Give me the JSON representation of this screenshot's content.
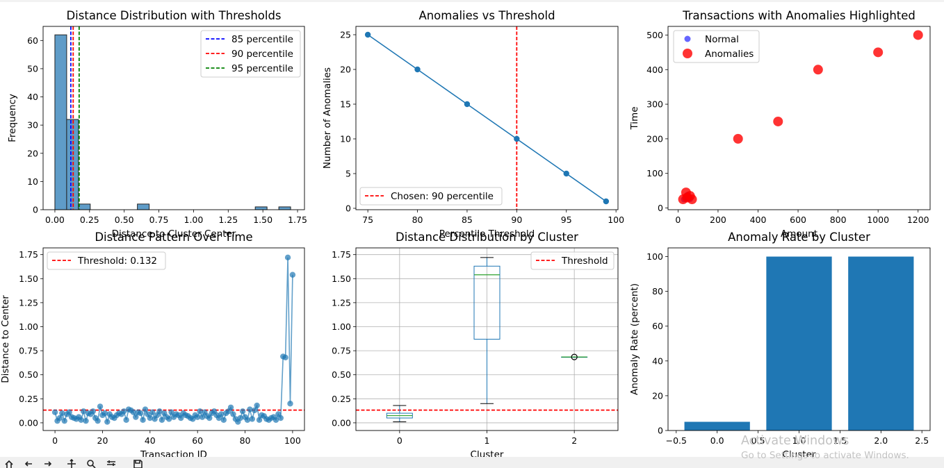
{
  "charts": {
    "hist": {
      "title": "Distance Distribution with Thresholds",
      "xlabel": "Distance to Cluster Center",
      "ylabel": "Frequency"
    },
    "line": {
      "title": "Anomalies vs Threshold",
      "xlabel": "Percentile Threshold",
      "ylabel": "Number of Anomalies"
    },
    "scatter": {
      "title": "Transactions with Anomalies Highlighted",
      "xlabel": "Amount",
      "ylabel": "Time"
    },
    "series": {
      "title": "Distance Pattern Over Time",
      "xlabel": "Transaction ID",
      "ylabel": "Distance to Center"
    },
    "box": {
      "title": "Distance Distribution by Cluster",
      "xlabel": "Cluster",
      "ylabel": ""
    },
    "rate": {
      "title": "Anomaly Rate by Cluster",
      "xlabel": "Cluster",
      "ylabel": "Anomaly Rate (percent)"
    }
  },
  "watermark": {
    "line1": "Activate Windows",
    "line2": "Go to Settings to activate Windows."
  },
  "toolbar_icons": [
    "home-icon",
    "back-icon",
    "forward-icon",
    "pan-icon",
    "zoom-icon",
    "subplots-icon",
    "save-icon"
  ],
  "chart_data": [
    {
      "type": "bar",
      "title": "Distance Distribution with Thresholds",
      "xlabel": "Distance to Cluster Center",
      "ylabel": "Frequency",
      "xlim": [
        -0.085,
        1.8
      ],
      "ylim": [
        0,
        65
      ],
      "xticks": [
        "0.00",
        "0.25",
        "0.50",
        "0.75",
        "1.00",
        "1.25",
        "1.50",
        "1.75"
      ],
      "yticks": [
        "0",
        "10",
        "20",
        "30",
        "40",
        "50",
        "60"
      ],
      "color": "#5f9cc8",
      "bins": [
        {
          "x0": 0.0,
          "x1": 0.085,
          "count": 62
        },
        {
          "x0": 0.085,
          "x1": 0.17,
          "count": 32
        },
        {
          "x0": 0.17,
          "x1": 0.255,
          "count": 2
        },
        {
          "x0": 0.595,
          "x1": 0.68,
          "count": 2
        },
        {
          "x0": 1.445,
          "x1": 1.53,
          "count": 1
        },
        {
          "x0": 1.615,
          "x1": 1.7,
          "count": 1
        }
      ],
      "thresholds": [
        {
          "name": "85 percentile",
          "x": 0.115,
          "color": "#0000ff"
        },
        {
          "name": "90 percentile",
          "x": 0.132,
          "color": "#ff0000"
        },
        {
          "name": "95 percentile",
          "x": 0.175,
          "color": "#008000"
        }
      ],
      "legend": "top-right",
      "grid": false
    },
    {
      "type": "line",
      "title": "Anomalies vs Threshold",
      "xlabel": "Percentile Threshold",
      "ylabel": "Number of Anomalies",
      "xlim": [
        73.8,
        100.2
      ],
      "ylim": [
        -0.2,
        26.2
      ],
      "xticks": [
        "75",
        "80",
        "85",
        "90",
        "95",
        "100"
      ],
      "yticks": [
        "0",
        "5",
        "10",
        "15",
        "20",
        "25"
      ],
      "x": [
        75,
        80,
        85,
        90,
        95,
        99
      ],
      "y": [
        25,
        20,
        15,
        10,
        5,
        1
      ],
      "color": "#1f77b4",
      "vline": {
        "name": "Chosen: 90 percentile",
        "x": 90,
        "color": "#ff0000"
      },
      "legend": "bottom-left",
      "grid": false
    },
    {
      "type": "scatter",
      "title": "Transactions with Anomalies Highlighted",
      "xlabel": "Amount",
      "ylabel": "Time",
      "xlim": [
        -50,
        1260
      ],
      "ylim": [
        -5,
        525
      ],
      "xticks": [
        "0",
        "200",
        "400",
        "600",
        "800",
        "1000",
        "1200"
      ],
      "yticks": [
        "0",
        "100",
        "200",
        "300",
        "400",
        "500"
      ],
      "series": [
        {
          "name": "Normal",
          "color": "#0000ff",
          "points": [
            [
              30,
              25
            ],
            [
              40,
              30
            ],
            [
              45,
              35
            ],
            [
              50,
              28
            ],
            [
              55,
              32
            ],
            [
              60,
              26
            ],
            [
              48,
              38
            ],
            [
              52,
              30
            ]
          ]
        },
        {
          "name": "Anomalies",
          "color": "#ff0000",
          "points": [
            [
              25,
              25
            ],
            [
              40,
              45
            ],
            [
              45,
              30
            ],
            [
              60,
              35
            ],
            [
              70,
              25
            ],
            [
              300,
              200
            ],
            [
              500,
              250
            ],
            [
              700,
              400
            ],
            [
              1000,
              450
            ],
            [
              1200,
              500
            ]
          ]
        }
      ],
      "legend": "top-left",
      "grid": false
    },
    {
      "type": "line",
      "title": "Distance Pattern Over Time",
      "xlabel": "Transaction ID",
      "ylabel": "Distance to Center",
      "xlim": [
        -5,
        105
      ],
      "ylim": [
        -0.08,
        1.82
      ],
      "xticks": [
        "0",
        "20",
        "40",
        "60",
        "80",
        "100"
      ],
      "yticks": [
        "0.00",
        "0.25",
        "0.50",
        "0.75",
        "1.00",
        "1.25",
        "1.50",
        "1.75"
      ],
      "x": [
        0,
        1,
        2,
        3,
        4,
        5,
        6,
        7,
        8,
        9,
        10,
        11,
        12,
        13,
        14,
        15,
        16,
        17,
        18,
        19,
        20,
        21,
        22,
        23,
        24,
        25,
        26,
        27,
        28,
        29,
        30,
        31,
        32,
        33,
        34,
        35,
        36,
        37,
        38,
        39,
        40,
        41,
        42,
        43,
        44,
        45,
        46,
        47,
        48,
        49,
        50,
        51,
        52,
        53,
        54,
        55,
        56,
        57,
        58,
        59,
        60,
        61,
        62,
        63,
        64,
        65,
        66,
        67,
        68,
        69,
        70,
        71,
        72,
        73,
        74,
        75,
        76,
        77,
        78,
        79,
        80,
        81,
        82,
        83,
        84,
        85,
        86,
        87,
        88,
        89,
        90,
        91,
        92,
        93,
        94,
        95,
        96,
        97,
        98,
        99,
        100
      ],
      "y": [
        0.11,
        0.02,
        0.05,
        0.1,
        0.02,
        0.09,
        0.11,
        0.06,
        0.05,
        0.04,
        0.06,
        0.03,
        0.12,
        0.02,
        0.1,
        0.09,
        0.12,
        0.05,
        0.02,
        0.17,
        0.08,
        0.1,
        0.01,
        0.09,
        0.06,
        0.05,
        0.08,
        0.1,
        0.09,
        0.12,
        0.03,
        0.14,
        0.13,
        0.11,
        0.06,
        0.11,
        0.1,
        0.03,
        0.14,
        0.09,
        0.05,
        0.11,
        0.04,
        0.08,
        0.12,
        0.03,
        0.1,
        0.06,
        0.04,
        0.11,
        0.06,
        0.09,
        0.08,
        0.05,
        0.1,
        0.08,
        0.07,
        0.05,
        0.04,
        0.08,
        0.06,
        0.12,
        0.06,
        0.11,
        0.07,
        0.05,
        0.1,
        0.12,
        0.08,
        0.05,
        0.09,
        0.03,
        0.1,
        0.12,
        0.16,
        0.09,
        0.04,
        0.01,
        0.05,
        0.12,
        0.06,
        0.03,
        0.14,
        0.04,
        0.13,
        0.18,
        0.03,
        0.08,
        0.07,
        0.04,
        0.03,
        0.05,
        0.06,
        0.03,
        0.09,
        0.05,
        0.69,
        0.68,
        1.72,
        0.2,
        1.54
      ],
      "threshold": {
        "name": "Threshold: 0.132",
        "y": 0.132,
        "color": "#ff0000"
      },
      "color": "#1f77b4",
      "legend": "top-left",
      "grid": false
    },
    {
      "type": "box",
      "title": "Distance Distribution by Cluster",
      "xlabel": "Cluster",
      "xlim": [
        -0.5,
        2.5
      ],
      "ylim": [
        -0.08,
        1.82
      ],
      "categories": [
        "0",
        "1",
        "2"
      ],
      "yticks": [
        "0.00",
        "0.25",
        "0.50",
        "0.75",
        "1.00",
        "1.25",
        "1.50",
        "1.75"
      ],
      "boxes": [
        {
          "cluster": "0",
          "whisker_low": 0.01,
          "q1": 0.05,
          "median": 0.075,
          "q3": 0.1,
          "whisker_high": 0.18
        },
        {
          "cluster": "1",
          "whisker_low": 0.2,
          "q1": 0.87,
          "median": 1.54,
          "q3": 1.63,
          "whisker_high": 1.72
        },
        {
          "cluster": "2",
          "whisker_low": 0.685,
          "q1": 0.685,
          "median": 0.685,
          "q3": 0.685,
          "whisker_high": 0.685,
          "outliers": [
            0.685
          ]
        }
      ],
      "threshold": {
        "name": "Threshold",
        "y": 0.132,
        "color": "#ff0000"
      },
      "box_color": "#1f77b4",
      "median_color": "#2ca02c",
      "legend": "top-right",
      "grid": true
    },
    {
      "type": "bar",
      "title": "Anomaly Rate by Cluster",
      "xlabel": "Cluster",
      "ylabel": "Anomaly Rate (percent)",
      "xlim": [
        -0.6,
        2.6
      ],
      "ylim": [
        0,
        105
      ],
      "xticks": [
        "−0.5",
        "0.0",
        "0.5",
        "1.0",
        "1.5",
        "2.0",
        "2.5"
      ],
      "yticks": [
        "0",
        "20",
        "40",
        "60",
        "80",
        "100"
      ],
      "categories": [
        0,
        1,
        2
      ],
      "values": [
        5,
        100,
        100
      ],
      "color": "#1f77b4",
      "grid": false
    }
  ]
}
